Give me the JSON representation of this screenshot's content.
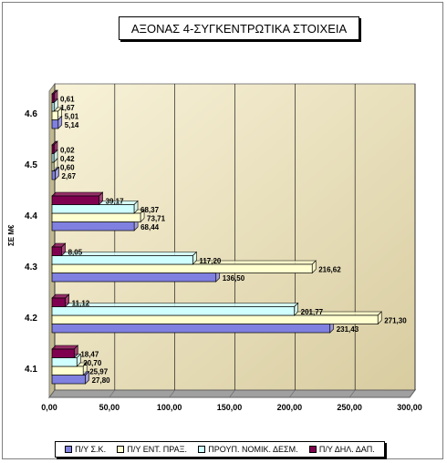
{
  "chart_data": {
    "type": "bar",
    "orientation": "horizontal",
    "title": "ΑΞΟΝΑΣ 4-ΣΥΓΚΕΝΤΡΩΤΙΚΑ ΣΤΟΙΧΕΙΑ",
    "ylabel": "ΣΕ Μ€",
    "xlabel": "",
    "categories": [
      "4.1",
      "4.2",
      "4.3",
      "4.4",
      "4.5",
      "4.6"
    ],
    "xlim": [
      0,
      300
    ],
    "xticks": [
      "0,00",
      "50,00",
      "100,00",
      "150,00",
      "200,00",
      "250,00",
      "300,00"
    ],
    "grid": true,
    "legend_position": "bottom",
    "series": [
      {
        "name": "Π/Υ Σ.Κ.",
        "color": "#8080e0",
        "values": [
          27.8,
          231.43,
          136.5,
          68.44,
          2.67,
          5.14
        ],
        "labels": [
          "27,80",
          "231,43",
          "136,50",
          "68,44",
          "2,67",
          "5,14"
        ]
      },
      {
        "name": "Π/Υ ΕΝΤ. ΠΡΑΞ.",
        "color": "#ffffd0",
        "values": [
          25.97,
          271.3,
          216.62,
          73.71,
          0.6,
          5.01
        ],
        "labels": [
          "25,97",
          "271,30",
          "216,62",
          "73,71",
          "0,60",
          "5,01"
        ]
      },
      {
        "name": "ΠΡΟΥΠ. ΝΟΜΙΚ. ΔΕΣΜ.",
        "color": "#d0ffff",
        "values": [
          20.7,
          201.77,
          117.2,
          68.37,
          0.42,
          1.67
        ],
        "labels": [
          "20,70",
          "201,77",
          "117,20",
          "68,37",
          "0,42",
          "1,67"
        ]
      },
      {
        "name": "Π/Υ ΔΗΛ. ΔΑΠ.",
        "color": "#800050",
        "values": [
          18.47,
          11.12,
          8.05,
          39.17,
          0.02,
          0.61
        ],
        "labels": [
          "18,47",
          "11,12",
          "8,05",
          "39,17",
          "0,02",
          "0,61"
        ]
      }
    ]
  }
}
